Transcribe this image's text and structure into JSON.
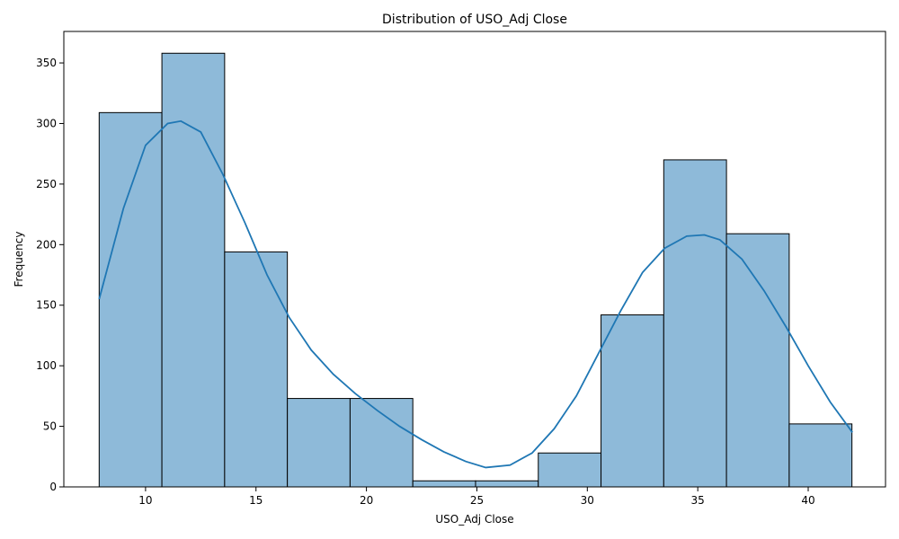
{
  "chart_data": {
    "type": "bar",
    "subtype": "histogram-with-kde",
    "title": "Distribution of USO_Adj Close",
    "xlabel": "USO_Adj Close",
    "ylabel": "Frequency",
    "xlim": [
      6.3,
      43.5
    ],
    "ylim": [
      0,
      376
    ],
    "bin_edges": [
      7.9,
      10.74,
      13.58,
      16.42,
      19.26,
      22.1,
      24.94,
      27.78,
      30.62,
      33.46,
      36.3,
      39.14,
      41.98
    ],
    "values": [
      309,
      358,
      194,
      73,
      73,
      5,
      5,
      28,
      142,
      270,
      209,
      52
    ],
    "x_ticks": [
      10,
      15,
      20,
      25,
      30,
      35,
      40
    ],
    "y_ticks": [
      0,
      50,
      100,
      150,
      200,
      250,
      300,
      350
    ],
    "kde": {
      "name": "KDE",
      "color": "#1f77b4",
      "x": [
        7.9,
        9.0,
        10.0,
        11.0,
        11.6,
        12.5,
        13.5,
        14.5,
        15.5,
        16.5,
        17.5,
        18.5,
        19.5,
        20.5,
        21.5,
        22.5,
        23.5,
        24.5,
        25.4,
        26.5,
        27.5,
        28.5,
        29.5,
        30.5,
        31.5,
        32.5,
        33.5,
        34.5,
        35.3,
        36.0,
        37.0,
        38.0,
        39.0,
        40.0,
        41.0,
        42.0
      ],
      "y": [
        155,
        230,
        282,
        300,
        302,
        293,
        258,
        218,
        175,
        140,
        113,
        93,
        77,
        63,
        50,
        39,
        29,
        21,
        16,
        18,
        28,
        48,
        75,
        110,
        145,
        177,
        197,
        207,
        208,
        204,
        188,
        162,
        132,
        100,
        70,
        45
      ]
    },
    "bar_color": "#8ebad9",
    "edge_color": "#000000",
    "grid": false,
    "legend": false
  }
}
